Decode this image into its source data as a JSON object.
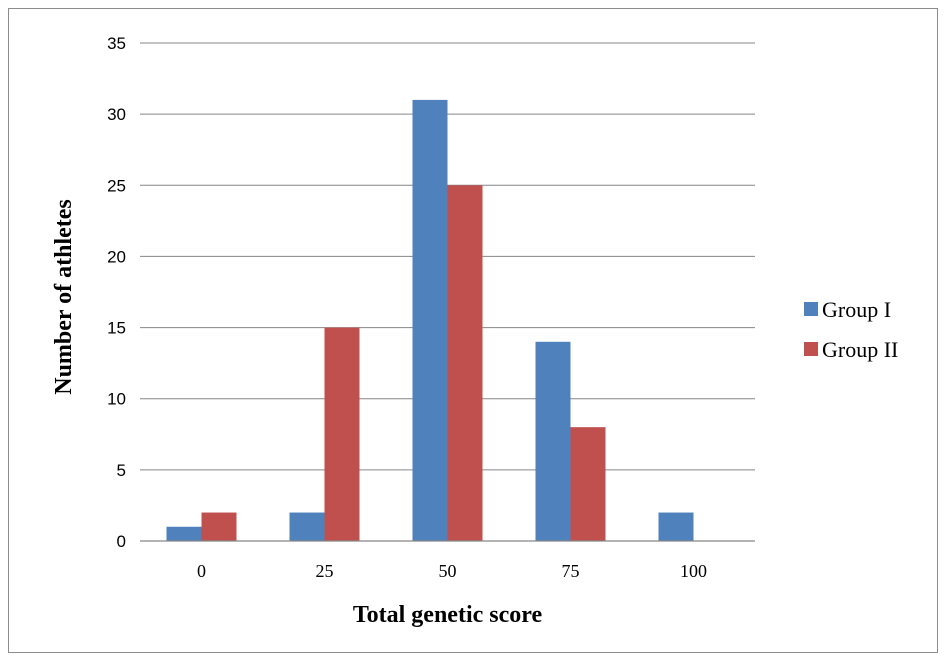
{
  "chart_data": {
    "type": "bar",
    "title": "",
    "xlabel": "Total genetic score",
    "ylabel": "Number of athletes",
    "categories": [
      "0",
      "25",
      "50",
      "75",
      "100"
    ],
    "series": [
      {
        "name": "Group I",
        "color": "#4f81bd",
        "values": [
          1,
          2,
          31,
          14,
          2
        ]
      },
      {
        "name": "Group II",
        "color": "#c0504d",
        "values": [
          2,
          15,
          25,
          8,
          0
        ]
      }
    ],
    "ylim": [
      0,
      35
    ],
    "yticks": [
      0,
      5,
      10,
      15,
      20,
      25,
      30,
      35
    ],
    "grid": true,
    "legend_position": "right"
  }
}
